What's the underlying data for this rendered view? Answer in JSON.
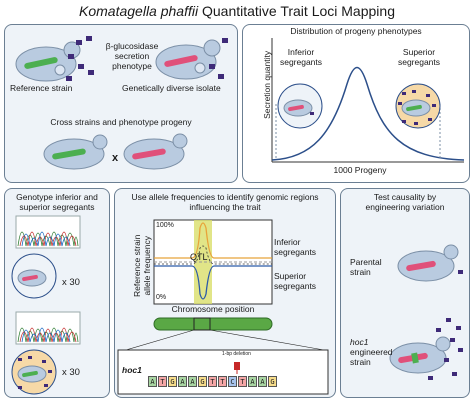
{
  "title": {
    "italic": "Komatagella phaffii",
    "rest": "Quantitative Trait Loci Mapping"
  },
  "panel1": {
    "secretion_label": [
      "β-glucosidase",
      "secretion",
      "phenotype"
    ],
    "reference_strain": "Reference strain",
    "diverse_isolate": "Genetically diverse isolate",
    "cross_label": "Cross strains and phenotype progeny",
    "cross_symbol": "x"
  },
  "panel2": {
    "heading": "Distribution of progeny phenotypes",
    "inferior": [
      "Inferior",
      "segregants"
    ],
    "superior": [
      "Superior",
      "segregants"
    ],
    "ylabel": "Secretion quantity",
    "xlabel": "1000 Progeny"
  },
  "panel3": {
    "heading": [
      "Genotype inferior and",
      "superior segregants"
    ],
    "count_top": "x 30",
    "count_bottom": "x 30"
  },
  "panel4": {
    "heading": [
      "Use allele frequencies to identify genomic regions",
      "influencing the trait"
    ],
    "y_top": "100%",
    "y_bottom": "0%",
    "ylabel": [
      "Reference strain",
      "allele frequency"
    ],
    "qtl": "QTL",
    "inferior": [
      "Inferior",
      "segregants"
    ],
    "superior": [
      "Superior",
      "segregants"
    ],
    "chrom_label": "Chromosome position",
    "gene": "hoc1",
    "deletion": "1-bp deletion",
    "sequence": [
      "A",
      "T",
      "G",
      "A",
      "A",
      "G",
      "T",
      "T",
      "C",
      "T",
      "A",
      "A",
      "G"
    ]
  },
  "panel5": {
    "heading": [
      "Test causality by",
      "engineering variation"
    ],
    "parental": [
      "Parental",
      "strain"
    ],
    "engineered_gene": "hoc1",
    "engineered": [
      "engineered",
      "strain"
    ]
  },
  "colors": {
    "panel_bg": "#eef3f8",
    "cell": "#b9cbe0",
    "nucleus": "#dde6f2",
    "green_plasmid": "#4caf50",
    "red_plasmid": "#e0507a",
    "protein": "#3e2a78",
    "curve": "#2c4f8a",
    "inferior_line": "#e8a33a",
    "superior_line": "#2b5aa8",
    "qtl_fill": "#d9df6a",
    "chromosome": "#5aa845",
    "superior_circle": "#f6d9a7"
  }
}
